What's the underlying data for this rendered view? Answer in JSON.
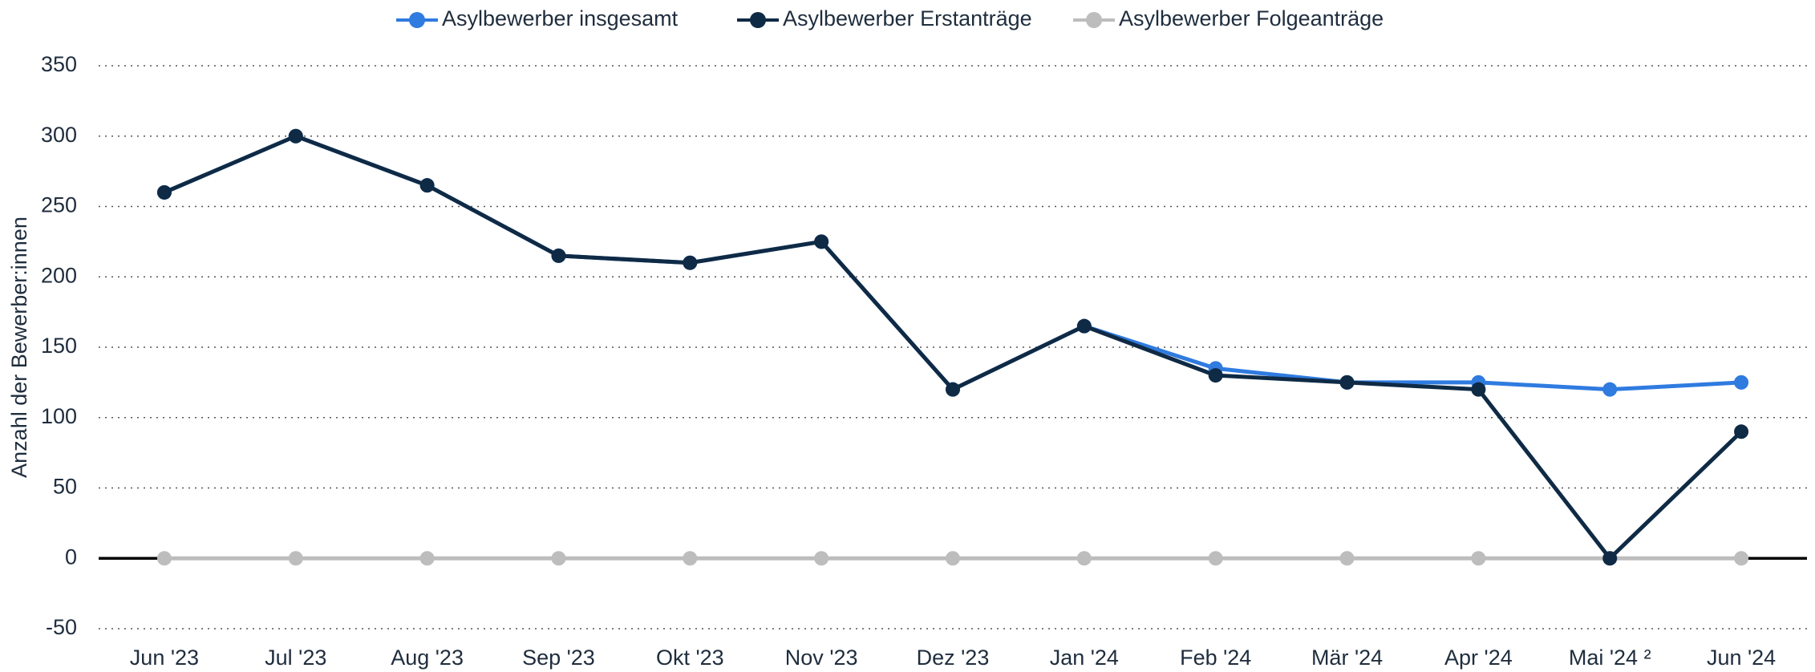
{
  "chart_data": {
    "type": "line",
    "y_label": "Anzahl der Bewerber:innen",
    "categories": [
      "Jun '23",
      "Jul '23",
      "Aug '23",
      "Sep '23",
      "Okt '23",
      "Nov '23",
      "Dez '23",
      "Jan '24",
      "Feb '24",
      "Mär '24",
      "Apr '24",
      "Mai '24 ²",
      "Jun '24"
    ],
    "series": [
      {
        "name": "Asylbewerber insgesamt",
        "color": "#2f7be0",
        "values": [
          260,
          300,
          265,
          215,
          210,
          225,
          120,
          165,
          135,
          125,
          125,
          120,
          125
        ]
      },
      {
        "name": "Asylbewerber Erstanträge",
        "color": "#0f2a45",
        "values": [
          260,
          300,
          265,
          215,
          210,
          225,
          120,
          165,
          130,
          125,
          120,
          0,
          90
        ]
      },
      {
        "name": "Asylbewerber Folgeanträge",
        "color": "#bdbdbd",
        "values": [
          0,
          0,
          0,
          0,
          0,
          0,
          0,
          0,
          0,
          0,
          0,
          0,
          0
        ]
      }
    ],
    "ylim": [
      -50,
      350
    ],
    "yticks": [
      -50,
      0,
      50,
      100,
      150,
      200,
      250,
      300,
      350
    ],
    "grid": true,
    "legend": "top"
  }
}
